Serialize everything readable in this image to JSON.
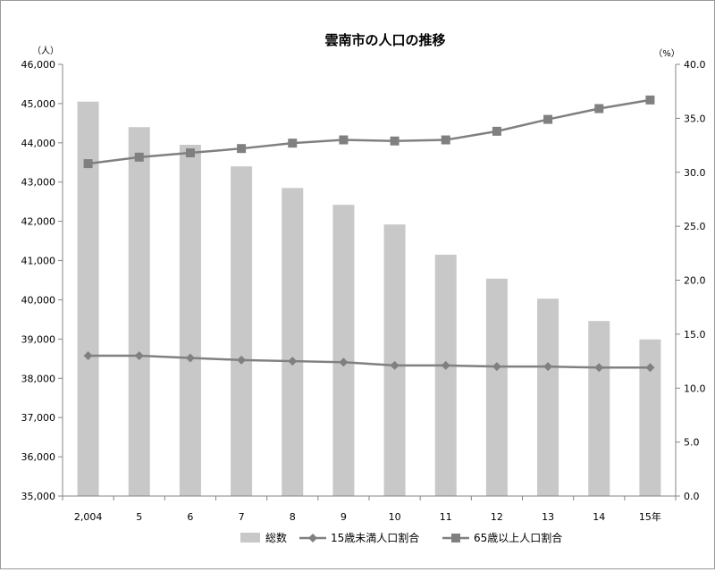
{
  "chart_data": {
    "type": "bar",
    "title": "雲南市の人口の推移",
    "ylabel_left": "（人）",
    "ylabel_right": "（%）",
    "categories": [
      "2,004",
      "5",
      "6",
      "7",
      "8",
      "9",
      "10",
      "11",
      "12",
      "13",
      "14",
      "15年"
    ],
    "y_left_range": [
      35000,
      46000
    ],
    "y_left_ticks": [
      "35,000",
      "36,000",
      "37,000",
      "38,000",
      "39,000",
      "40,000",
      "41,000",
      "42,000",
      "43,000",
      "44,000",
      "45,000",
      "46,000"
    ],
    "y_right_range": [
      0,
      40
    ],
    "y_right_ticks": [
      "0.0",
      "5.0",
      "10.0",
      "15.0",
      "20.0",
      "25.0",
      "30.0",
      "35.0",
      "40.0"
    ],
    "grid": false,
    "legend_position": "bottom",
    "series": [
      {
        "name": "総数",
        "type": "bar",
        "axis": "left",
        "color": "#c8c8c8",
        "values": [
          45050,
          44400,
          43950,
          43400,
          42850,
          42420,
          41920,
          41150,
          40540,
          40030,
          39460,
          38990
        ]
      },
      {
        "name": "15歳未満人口割合",
        "type": "line",
        "axis": "right",
        "marker": "diamond",
        "color": "#808080",
        "values": [
          13.0,
          13.0,
          12.8,
          12.6,
          12.5,
          12.4,
          12.1,
          12.1,
          12.0,
          12.0,
          11.9,
          11.9
        ]
      },
      {
        "name": "65歳以上人口割合",
        "type": "line",
        "axis": "right",
        "marker": "square",
        "color": "#808080",
        "values": [
          30.8,
          31.4,
          31.8,
          32.2,
          32.7,
          33.0,
          32.9,
          33.0,
          33.8,
          34.9,
          35.9,
          36.7
        ]
      }
    ]
  }
}
